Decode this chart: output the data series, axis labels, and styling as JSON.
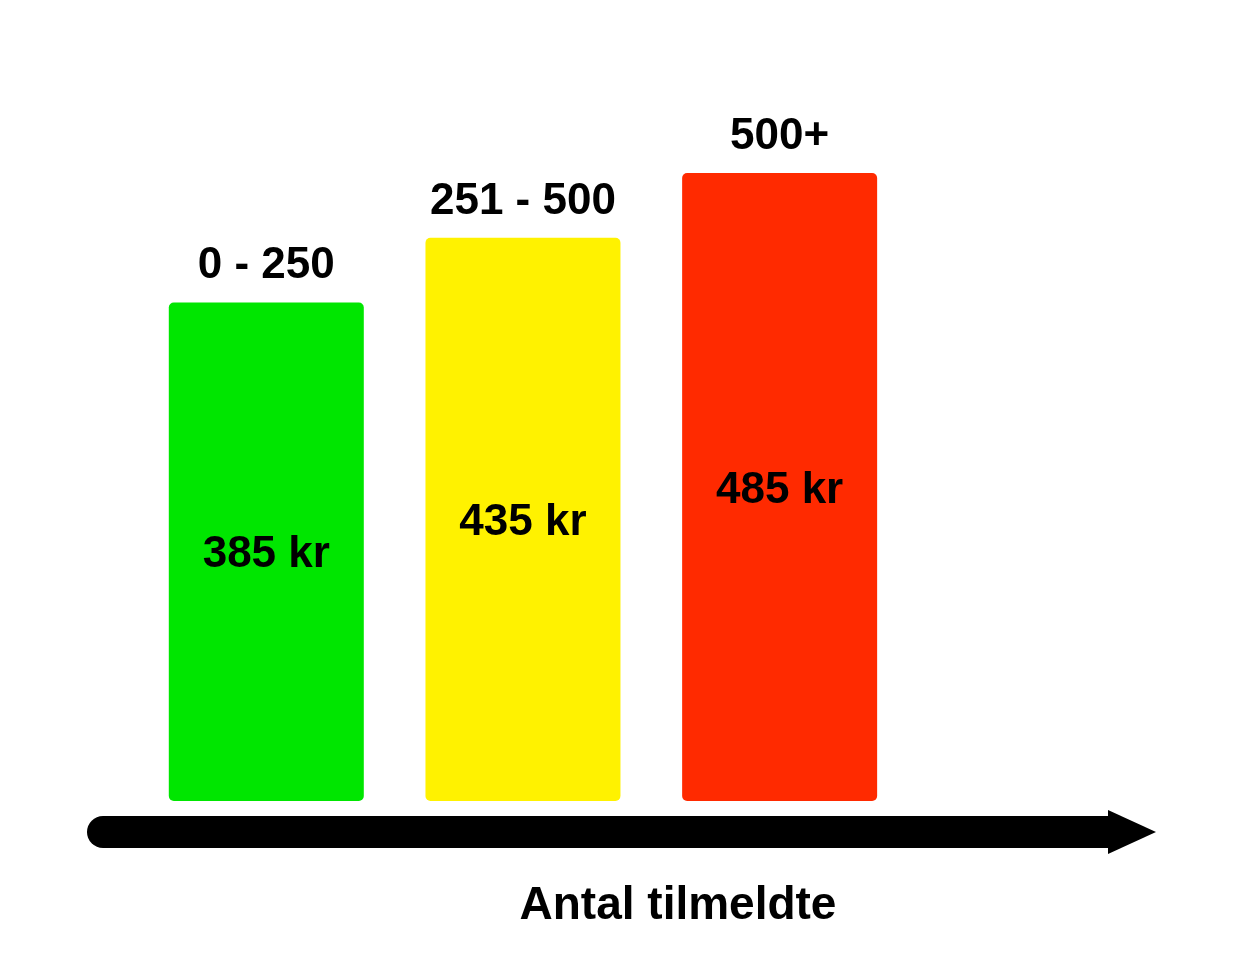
{
  "chart_data": {
    "type": "bar",
    "xlabel": "Antal tilmeldte",
    "categories": [
      "0 - 250",
      "251 - 500",
      "500+"
    ],
    "values": [
      385,
      435,
      485
    ],
    "value_labels": [
      "385 kr",
      "435 kr",
      "485 kr"
    ],
    "colors": [
      "#00e600",
      "#fff200",
      "#ff2a00"
    ]
  }
}
